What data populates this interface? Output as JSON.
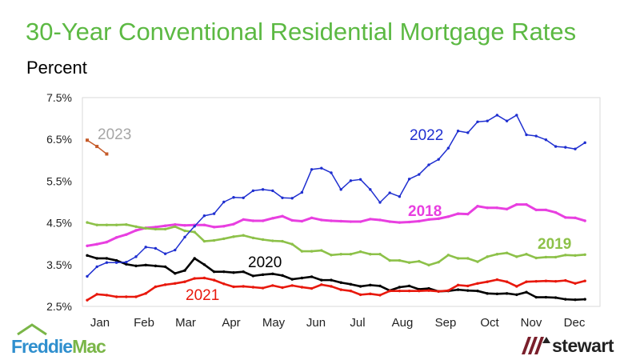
{
  "title": "30-Year Conventional Residential Mortgage Rates",
  "subtitle": "Percent",
  "logos": {
    "left": "Freddie Mac",
    "left_parts": [
      "Freddie",
      "Mac"
    ],
    "right": "stewart"
  },
  "chart_data": {
    "type": "line",
    "title": "30-Year Conventional Residential Mortgage Rates",
    "ylabel": "Percent",
    "ylim": [
      2.5,
      7.5
    ],
    "yticks": [
      "2.5%",
      "3.5%",
      "4.5%",
      "5.5%",
      "6.5%",
      "7.5%"
    ],
    "ytick_values": [
      2.5,
      3.5,
      4.5,
      5.5,
      6.5,
      7.5
    ],
    "xticks": [
      "Jan",
      "Feb",
      "Mar",
      "Apr",
      "May",
      "Jun",
      "Jul",
      "Aug",
      "Sep",
      "Oct",
      "Nov",
      "Dec"
    ],
    "x_unit": "week of year",
    "grid": false,
    "legend": "inline labels",
    "series": [
      {
        "name": "2018",
        "color": "#e83fe0",
        "values": [
          3.95,
          3.99,
          4.04,
          4.15,
          4.22,
          4.32,
          4.38,
          4.4,
          4.43,
          4.46,
          4.44,
          4.45,
          4.45,
          4.4,
          4.42,
          4.47,
          4.58,
          4.55,
          4.55,
          4.61,
          4.66,
          4.56,
          4.54,
          4.62,
          4.57,
          4.55,
          4.54,
          4.53,
          4.53,
          4.59,
          4.57,
          4.53,
          4.51,
          4.52,
          4.54,
          4.58,
          4.6,
          4.65,
          4.72,
          4.71,
          4.9,
          4.86,
          4.86,
          4.83,
          4.94,
          4.94,
          4.81,
          4.81,
          4.75,
          4.63,
          4.62,
          4.55
        ]
      },
      {
        "name": "2019",
        "color": "#8dc149",
        "values": [
          4.51,
          4.45,
          4.45,
          4.45,
          4.46,
          4.41,
          4.37,
          4.35,
          4.35,
          4.41,
          4.31,
          4.28,
          4.06,
          4.08,
          4.12,
          4.17,
          4.2,
          4.14,
          4.1,
          4.07,
          4.06,
          3.99,
          3.82,
          3.82,
          3.84,
          3.73,
          3.75,
          3.75,
          3.81,
          3.75,
          3.75,
          3.6,
          3.6,
          3.55,
          3.58,
          3.49,
          3.56,
          3.73,
          3.65,
          3.65,
          3.57,
          3.69,
          3.75,
          3.78,
          3.69,
          3.75,
          3.66,
          3.68,
          3.68,
          3.73,
          3.72,
          3.74
        ]
      },
      {
        "name": "2020",
        "color": "#000000",
        "values": [
          3.72,
          3.65,
          3.65,
          3.6,
          3.51,
          3.47,
          3.49,
          3.47,
          3.45,
          3.29,
          3.36,
          3.65,
          3.5,
          3.33,
          3.33,
          3.31,
          3.33,
          3.23,
          3.26,
          3.28,
          3.24,
          3.15,
          3.18,
          3.21,
          3.13,
          3.13,
          3.07,
          3.03,
          2.98,
          3.01,
          2.99,
          2.88,
          2.96,
          2.99,
          2.91,
          2.93,
          2.86,
          2.87,
          2.9,
          2.88,
          2.87,
          2.81,
          2.8,
          2.81,
          2.78,
          2.84,
          2.72,
          2.72,
          2.71,
          2.67,
          2.66,
          2.67
        ]
      },
      {
        "name": "2021",
        "color": "#e8180c",
        "values": [
          2.65,
          2.79,
          2.77,
          2.73,
          2.73,
          2.73,
          2.81,
          2.97,
          3.02,
          3.05,
          3.09,
          3.17,
          3.18,
          3.13,
          3.04,
          2.97,
          2.98,
          2.96,
          2.94,
          3.0,
          2.95,
          3.0,
          2.96,
          2.93,
          3.02,
          2.98,
          2.9,
          2.87,
          2.78,
          2.8,
          2.77,
          2.87,
          2.87,
          2.87,
          2.87,
          2.88,
          2.86,
          2.88,
          3.01,
          2.99,
          3.05,
          3.09,
          3.14,
          3.09,
          2.98,
          3.09,
          3.1,
          3.11,
          3.1,
          3.12,
          3.05,
          3.11
        ]
      },
      {
        "name": "2022",
        "color": "#1f2fd0",
        "values": [
          3.22,
          3.45,
          3.55,
          3.55,
          3.56,
          3.69,
          3.92,
          3.89,
          3.76,
          3.85,
          4.16,
          4.42,
          4.67,
          4.72,
          5.0,
          5.11,
          5.1,
          5.27,
          5.3,
          5.27,
          5.1,
          5.09,
          5.23,
          5.78,
          5.81,
          5.7,
          5.3,
          5.51,
          5.54,
          5.3,
          4.99,
          5.22,
          5.13,
          5.55,
          5.66,
          5.89,
          6.02,
          6.29,
          6.7,
          6.66,
          6.92,
          6.94,
          7.08,
          6.94,
          7.08,
          6.61,
          6.58,
          6.49,
          6.33,
          6.31,
          6.27,
          6.42
        ]
      },
      {
        "name": "2023",
        "color": "#c55a28",
        "values": [
          6.48,
          6.33,
          6.15
        ]
      }
    ],
    "series_label_colors": {
      "2023": "#a6a6a6"
    }
  }
}
